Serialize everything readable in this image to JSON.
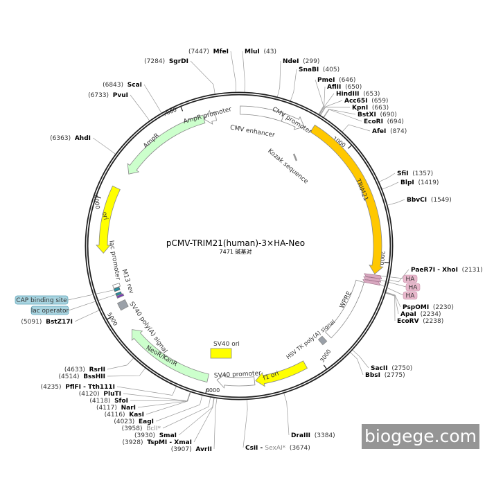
{
  "map": {
    "title": "pCMV-TRIM21(human)-3×HA-Neo",
    "subtitle": "7471 碱基对",
    "length": 7471,
    "ticks": [
      1000,
      2000,
      3000,
      4000,
      5000,
      6000,
      7000
    ]
  },
  "features": [
    {
      "name": "CMV enhancer",
      "start": 10,
      "end": 390,
      "direction": "none",
      "color": "#ffffff"
    },
    {
      "name": "CMV promoter",
      "start": 390,
      "end": 595,
      "direction": "forward",
      "color": "#ffffff"
    },
    {
      "name": "Kozak sequence",
      "start": 650,
      "end": 660,
      "direction": "none",
      "color": "#999999"
    },
    {
      "name": "TRIM21",
      "start": 665,
      "end": 2110,
      "direction": "forward",
      "color": "#ffc800"
    },
    {
      "name": "WPRE",
      "start": 2205,
      "end": 2800,
      "direction": "none",
      "color": "#ffffff"
    },
    {
      "name": "HSV TK poly(A) signal",
      "start": 2850,
      "end": 2900,
      "direction": "none",
      "color": "#9aa0a8"
    },
    {
      "name": "f1 ori",
      "start": 3130,
      "end": 3590,
      "direction": "forward",
      "color": "#ffff00"
    },
    {
      "name": "SV40 promoter",
      "start": 3600,
      "end": 3930,
      "direction": "forward",
      "color": "#ffffff"
    },
    {
      "name": "SV40 ori",
      "start": 0,
      "end": 0,
      "direction": "none",
      "color": "#ffff00"
    },
    {
      "name": "NeoR/KanR",
      "start": 4010,
      "end": 4815,
      "direction": "forward",
      "color": "#ccffcc"
    },
    {
      "name": "SV40 poly(A) signal",
      "start": 5010,
      "end": 5080,
      "direction": "none",
      "color": "#9aa0a8"
    },
    {
      "name": "M13 rev",
      "start": 5120,
      "end": 5140,
      "direction": "none",
      "color": "#7b3fb5"
    },
    {
      "name": "lac promoter",
      "start": 5215,
      "end": 5245,
      "direction": "none",
      "color": "#ffffff"
    },
    {
      "name": "ori",
      "start": 5540,
      "end": 6130,
      "direction": "reverse",
      "color": "#ffff00"
    },
    {
      "name": "AmpR",
      "start": 6290,
      "end": 7150,
      "direction": "reverse",
      "color": "#ccffcc"
    },
    {
      "name": "AmpR promoter",
      "start": 7150,
      "end": 7260,
      "direction": "reverse",
      "color": "#ffffff"
    }
  ],
  "small_features": [
    {
      "name": "lac operator",
      "start": 5145,
      "end": 5165,
      "color": "#2a8fa0"
    },
    {
      "name": "CAP binding site",
      "start": 5185,
      "end": 5210,
      "color": "#2a8fa0"
    }
  ],
  "badges": {
    "ha": [
      "HA",
      "HA",
      "HA"
    ],
    "ha_color": "#e8b8cc",
    "cap": "CAP binding site",
    "lac_operator": "lac operator",
    "blue_color": "#a8d4e0"
  },
  "enzymes": [
    {
      "name": "MfeI",
      "pos": 7447
    },
    {
      "name": "MluI",
      "pos": 43
    },
    {
      "name": "SgrDI",
      "pos": 7284
    },
    {
      "name": "NdeI",
      "pos": 299
    },
    {
      "name": "SnaBI",
      "pos": 405
    },
    {
      "name": "ScaI",
      "pos": 6843
    },
    {
      "name": "PvuI",
      "pos": 6733
    },
    {
      "name": "PmeI",
      "pos": 646
    },
    {
      "name": "AflII",
      "pos": 650
    },
    {
      "name": "HindIII",
      "pos": 653
    },
    {
      "name": "Acc65I",
      "pos": 659
    },
    {
      "name": "KpnI",
      "pos": 663
    },
    {
      "name": "BstXI",
      "pos": 690
    },
    {
      "name": "EcoRI",
      "pos": 694
    },
    {
      "name": "AfeI",
      "pos": 874
    },
    {
      "name": "AhdI",
      "pos": 6363
    },
    {
      "name": "SfiI",
      "pos": 1357
    },
    {
      "name": "BlpI",
      "pos": 1419
    },
    {
      "name": "BbvCI",
      "pos": 1549
    },
    {
      "name": "PaeR7I - XhoI",
      "pos": 2131
    },
    {
      "name": "PspOMI",
      "pos": 2230
    },
    {
      "name": "ApaI",
      "pos": 2234
    },
    {
      "name": "EcoRV",
      "pos": 2238
    },
    {
      "name": "SacII",
      "pos": 2750
    },
    {
      "name": "BbsI",
      "pos": 2775
    },
    {
      "name": "DraIII",
      "pos": 3384
    },
    {
      "name": "CsiI - ",
      "extra": "SexAI*",
      "pos": 3674
    },
    {
      "name": "AvrII",
      "pos": 3907
    },
    {
      "name": "TspMI - XmaI",
      "pos": 3928
    },
    {
      "name": "SmaI",
      "pos": 3930
    },
    {
      "name": "BclI*",
      "pos": 3958,
      "methylation_sensitive": true
    },
    {
      "name": "EagI",
      "pos": 4023
    },
    {
      "name": "KasI",
      "pos": 4116
    },
    {
      "name": "NarI",
      "pos": 4117
    },
    {
      "name": "SfoI",
      "pos": 4118
    },
    {
      "name": "PluTI",
      "pos": 4120
    },
    {
      "name": "PflFI - Tth111I",
      "pos": 4235
    },
    {
      "name": "BssHII",
      "pos": 4514
    },
    {
      "name": "RsrII",
      "pos": 4633
    },
    {
      "name": "BstZ17I",
      "pos": 5091
    }
  ],
  "watermark": "biogege.com"
}
